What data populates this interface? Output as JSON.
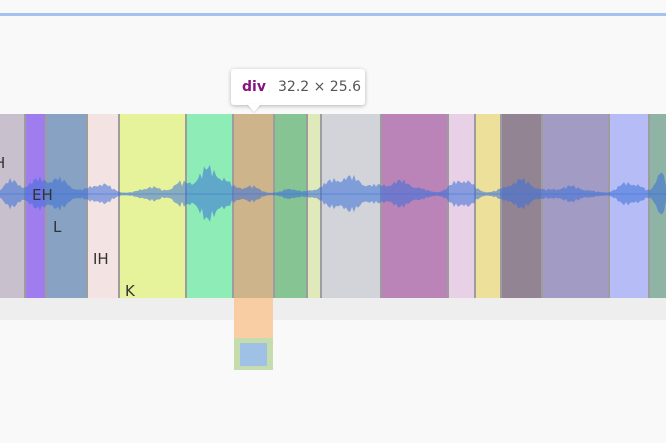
{
  "tooltip": {
    "tag": "div",
    "dimensions": "32.2 × 25.6"
  },
  "phoneme_labels": [
    "H",
    "EH",
    "L",
    "IH",
    "K"
  ],
  "colors": {
    "top_line": "#a5c3ee",
    "highlight_margin": "#f8c99a",
    "highlight_padding": "#c4dcae",
    "highlight_content": "#9fc1e6",
    "waveform": "#3a6fd8"
  }
}
